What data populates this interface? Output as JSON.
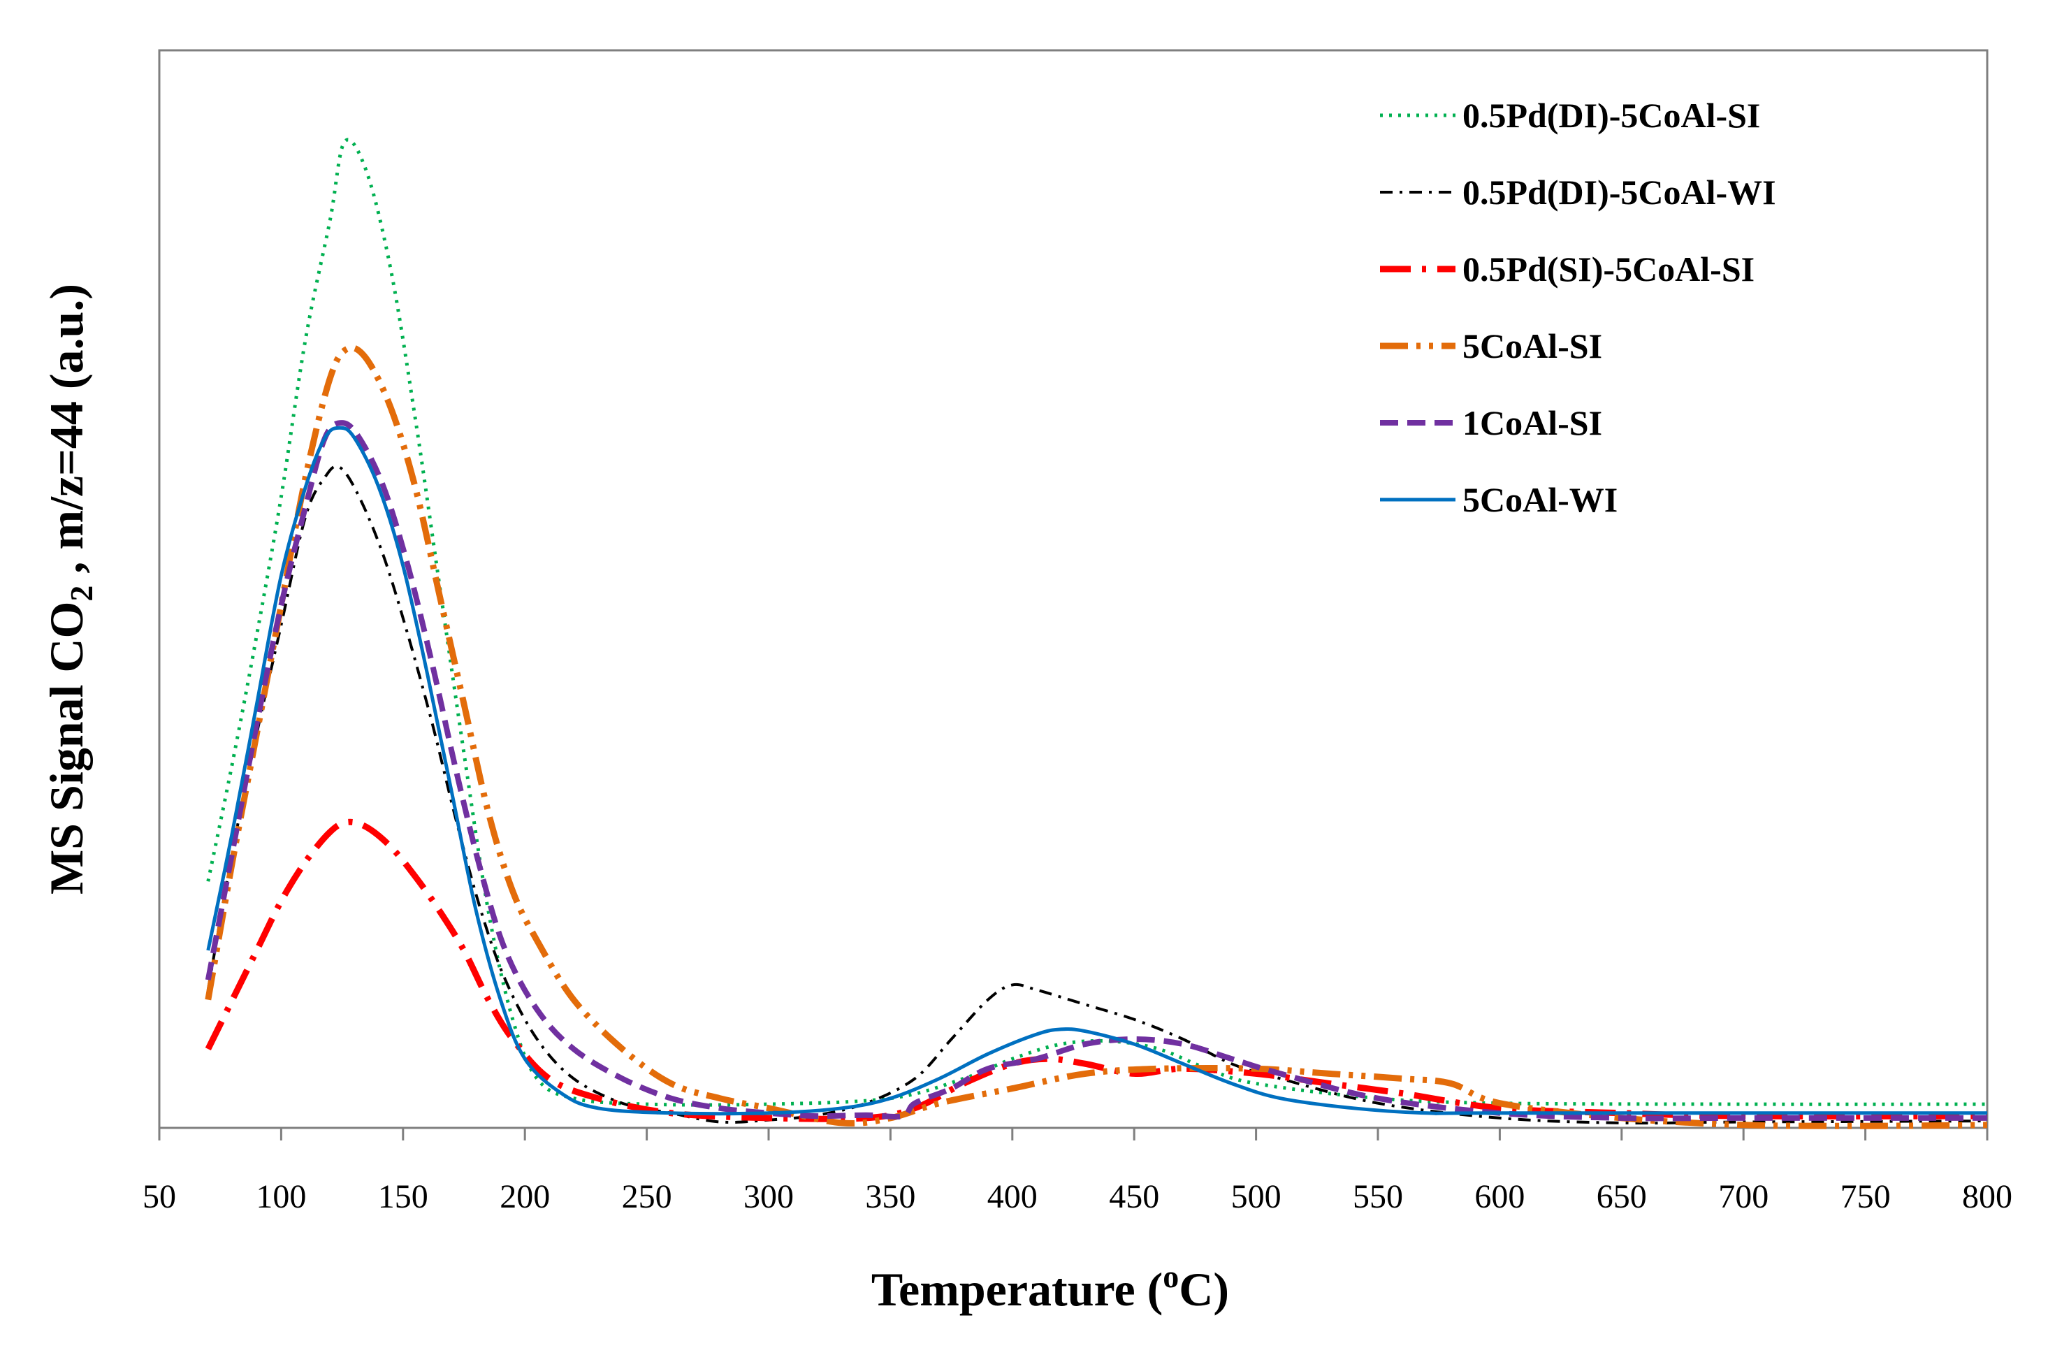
{
  "chart_data": {
    "type": "line",
    "title": "",
    "xlabel": "Temperature (",
    "xlabel_sup": "o",
    "xlabel_end": "C)",
    "ylabel": "MS Signal CO",
    "ylabel_sub": "2",
    "ylabel_end": " , m/z=44 (a.u.)",
    "xlim": [
      50,
      800
    ],
    "ylim": [
      0,
      100
    ],
    "xticks": [
      "50",
      "100",
      "150",
      "200",
      "250",
      "300",
      "350",
      "400",
      "450",
      "500",
      "550",
      "600",
      "650",
      "700",
      "750",
      "800"
    ],
    "yticks_shown": false,
    "grid": false,
    "legend_position": "top-right",
    "series": [
      {
        "name": "0.5Pd(DI)-5CoAl-SI",
        "color": "#00b050",
        "style": "dotted",
        "points": [
          [
            70,
            25
          ],
          [
            80,
            37
          ],
          [
            90,
            50
          ],
          [
            100,
            64
          ],
          [
            110,
            80
          ],
          [
            120,
            92
          ],
          [
            126,
            100
          ],
          [
            135,
            97
          ],
          [
            145,
            87
          ],
          [
            155,
            72
          ],
          [
            165,
            55
          ],
          [
            175,
            38
          ],
          [
            185,
            22
          ],
          [
            195,
            11
          ],
          [
            205,
            5
          ],
          [
            220,
            3
          ],
          [
            250,
            2.4
          ],
          [
            300,
            2.4
          ],
          [
            350,
            3
          ],
          [
            380,
            5
          ],
          [
            400,
            7
          ],
          [
            420,
            8.5
          ],
          [
            440,
            8.8
          ],
          [
            460,
            8
          ],
          [
            480,
            6
          ],
          [
            500,
            4.5
          ],
          [
            550,
            3
          ],
          [
            600,
            2.5
          ],
          [
            700,
            2.4
          ],
          [
            800,
            2.4
          ]
        ]
      },
      {
        "name": "0.5Pd(DI)-5CoAl-WI",
        "color": "#000000",
        "style": "dashdot",
        "points": [
          [
            70,
            14
          ],
          [
            80,
            28
          ],
          [
            90,
            40
          ],
          [
            100,
            51
          ],
          [
            110,
            62
          ],
          [
            118,
            66
          ],
          [
            124,
            67
          ],
          [
            132,
            64
          ],
          [
            142,
            58
          ],
          [
            152,
            50
          ],
          [
            162,
            41
          ],
          [
            172,
            31
          ],
          [
            182,
            22
          ],
          [
            192,
            15
          ],
          [
            205,
            9
          ],
          [
            220,
            5
          ],
          [
            240,
            2.5
          ],
          [
            260,
            1.5
          ],
          [
            280,
            0.6
          ],
          [
            300,
            0.8
          ],
          [
            320,
            1.3
          ],
          [
            340,
            2.5
          ],
          [
            360,
            5
          ],
          [
            375,
            9
          ],
          [
            390,
            13
          ],
          [
            400,
            14.5
          ],
          [
            410,
            14
          ],
          [
            430,
            12.5
          ],
          [
            450,
            11
          ],
          [
            470,
            9
          ],
          [
            490,
            6.5
          ],
          [
            510,
            5
          ],
          [
            550,
            2.5
          ],
          [
            600,
            1
          ],
          [
            650,
            0.5
          ],
          [
            700,
            0.6
          ],
          [
            800,
            0.7
          ]
        ]
      },
      {
        "name": "0.5Pd(SI)-5CoAl-SI",
        "color": "#ff0000",
        "style": "longdashdot",
        "points": [
          [
            70,
            8
          ],
          [
            80,
            13
          ],
          [
            90,
            18
          ],
          [
            100,
            23
          ],
          [
            110,
            27
          ],
          [
            120,
            30
          ],
          [
            127,
            31
          ],
          [
            135,
            30.5
          ],
          [
            145,
            28.5
          ],
          [
            155,
            25.5
          ],
          [
            165,
            22
          ],
          [
            175,
            18
          ],
          [
            185,
            13
          ],
          [
            195,
            9
          ],
          [
            210,
            5
          ],
          [
            230,
            3
          ],
          [
            260,
            1.5
          ],
          [
            300,
            1
          ],
          [
            340,
            1
          ],
          [
            360,
            2
          ],
          [
            380,
            4.5
          ],
          [
            400,
            6.5
          ],
          [
            415,
            7
          ],
          [
            430,
            6.5
          ],
          [
            450,
            5.5
          ],
          [
            470,
            6
          ],
          [
            500,
            5.5
          ],
          [
            530,
            4.5
          ],
          [
            560,
            3.5
          ],
          [
            600,
            2
          ],
          [
            650,
            1.5
          ],
          [
            700,
            1.2
          ],
          [
            800,
            1.2
          ]
        ]
      },
      {
        "name": "5CoAl-SI",
        "color": "#e36c0a",
        "style": "longdashdotdot",
        "points": [
          [
            70,
            13
          ],
          [
            80,
            27
          ],
          [
            90,
            40
          ],
          [
            100,
            53
          ],
          [
            110,
            66
          ],
          [
            120,
            76
          ],
          [
            127,
            79
          ],
          [
            135,
            78
          ],
          [
            145,
            73
          ],
          [
            155,
            65
          ],
          [
            165,
            54
          ],
          [
            175,
            43
          ],
          [
            185,
            32
          ],
          [
            195,
            24
          ],
          [
            205,
            19
          ],
          [
            220,
            13
          ],
          [
            240,
            8
          ],
          [
            260,
            4.5
          ],
          [
            280,
            3
          ],
          [
            300,
            2
          ],
          [
            330,
            0.5
          ],
          [
            350,
            1
          ],
          [
            370,
            2.5
          ],
          [
            400,
            4
          ],
          [
            430,
            5.5
          ],
          [
            460,
            6
          ],
          [
            500,
            6
          ],
          [
            530,
            5.5
          ],
          [
            560,
            5
          ],
          [
            580,
            4.5
          ],
          [
            600,
            2.5
          ],
          [
            650,
            1
          ],
          [
            700,
            0.3
          ],
          [
            750,
            0.2
          ],
          [
            800,
            0.3
          ]
        ]
      },
      {
        "name": "1CoAl-SI",
        "color": "#7030a0",
        "style": "dashed",
        "points": [
          [
            70,
            15
          ],
          [
            80,
            28
          ],
          [
            90,
            41
          ],
          [
            100,
            53
          ],
          [
            110,
            63
          ],
          [
            118,
            70
          ],
          [
            125,
            71.5
          ],
          [
            132,
            70
          ],
          [
            142,
            65
          ],
          [
            152,
            57
          ],
          [
            162,
            47
          ],
          [
            172,
            36
          ],
          [
            182,
            26
          ],
          [
            192,
            18
          ],
          [
            205,
            12
          ],
          [
            220,
            8
          ],
          [
            240,
            5
          ],
          [
            260,
            3
          ],
          [
            280,
            2
          ],
          [
            300,
            1.5
          ],
          [
            320,
            1.2
          ],
          [
            340,
            1.3
          ],
          [
            355,
            1.2
          ],
          [
            360,
            2.5
          ],
          [
            375,
            4
          ],
          [
            390,
            6
          ],
          [
            410,
            7
          ],
          [
            430,
            8.5
          ],
          [
            450,
            9
          ],
          [
            470,
            8.5
          ],
          [
            490,
            7
          ],
          [
            510,
            5.5
          ],
          [
            550,
            3
          ],
          [
            600,
            1.5
          ],
          [
            650,
            1
          ],
          [
            700,
            1
          ],
          [
            800,
            1
          ]
        ]
      },
      {
        "name": "5CoAl-WI",
        "color": "#0070c0",
        "style": "solid",
        "points": [
          [
            70,
            18
          ],
          [
            80,
            30
          ],
          [
            90,
            43
          ],
          [
            100,
            56
          ],
          [
            110,
            65
          ],
          [
            118,
            70
          ],
          [
            124,
            71
          ],
          [
            130,
            70
          ],
          [
            140,
            65
          ],
          [
            150,
            57
          ],
          [
            160,
            46
          ],
          [
            170,
            34
          ],
          [
            180,
            22
          ],
          [
            190,
            13
          ],
          [
            200,
            7
          ],
          [
            215,
            3.5
          ],
          [
            230,
            2
          ],
          [
            260,
            1.5
          ],
          [
            300,
            1.5
          ],
          [
            330,
            2
          ],
          [
            350,
            3
          ],
          [
            370,
            5
          ],
          [
            390,
            7.5
          ],
          [
            410,
            9.5
          ],
          [
            420,
            10
          ],
          [
            430,
            9.8
          ],
          [
            450,
            8.5
          ],
          [
            470,
            6.5
          ],
          [
            490,
            4.5
          ],
          [
            510,
            3
          ],
          [
            540,
            2
          ],
          [
            570,
            1.5
          ],
          [
            600,
            1.5
          ],
          [
            800,
            1.5
          ]
        ]
      }
    ]
  }
}
